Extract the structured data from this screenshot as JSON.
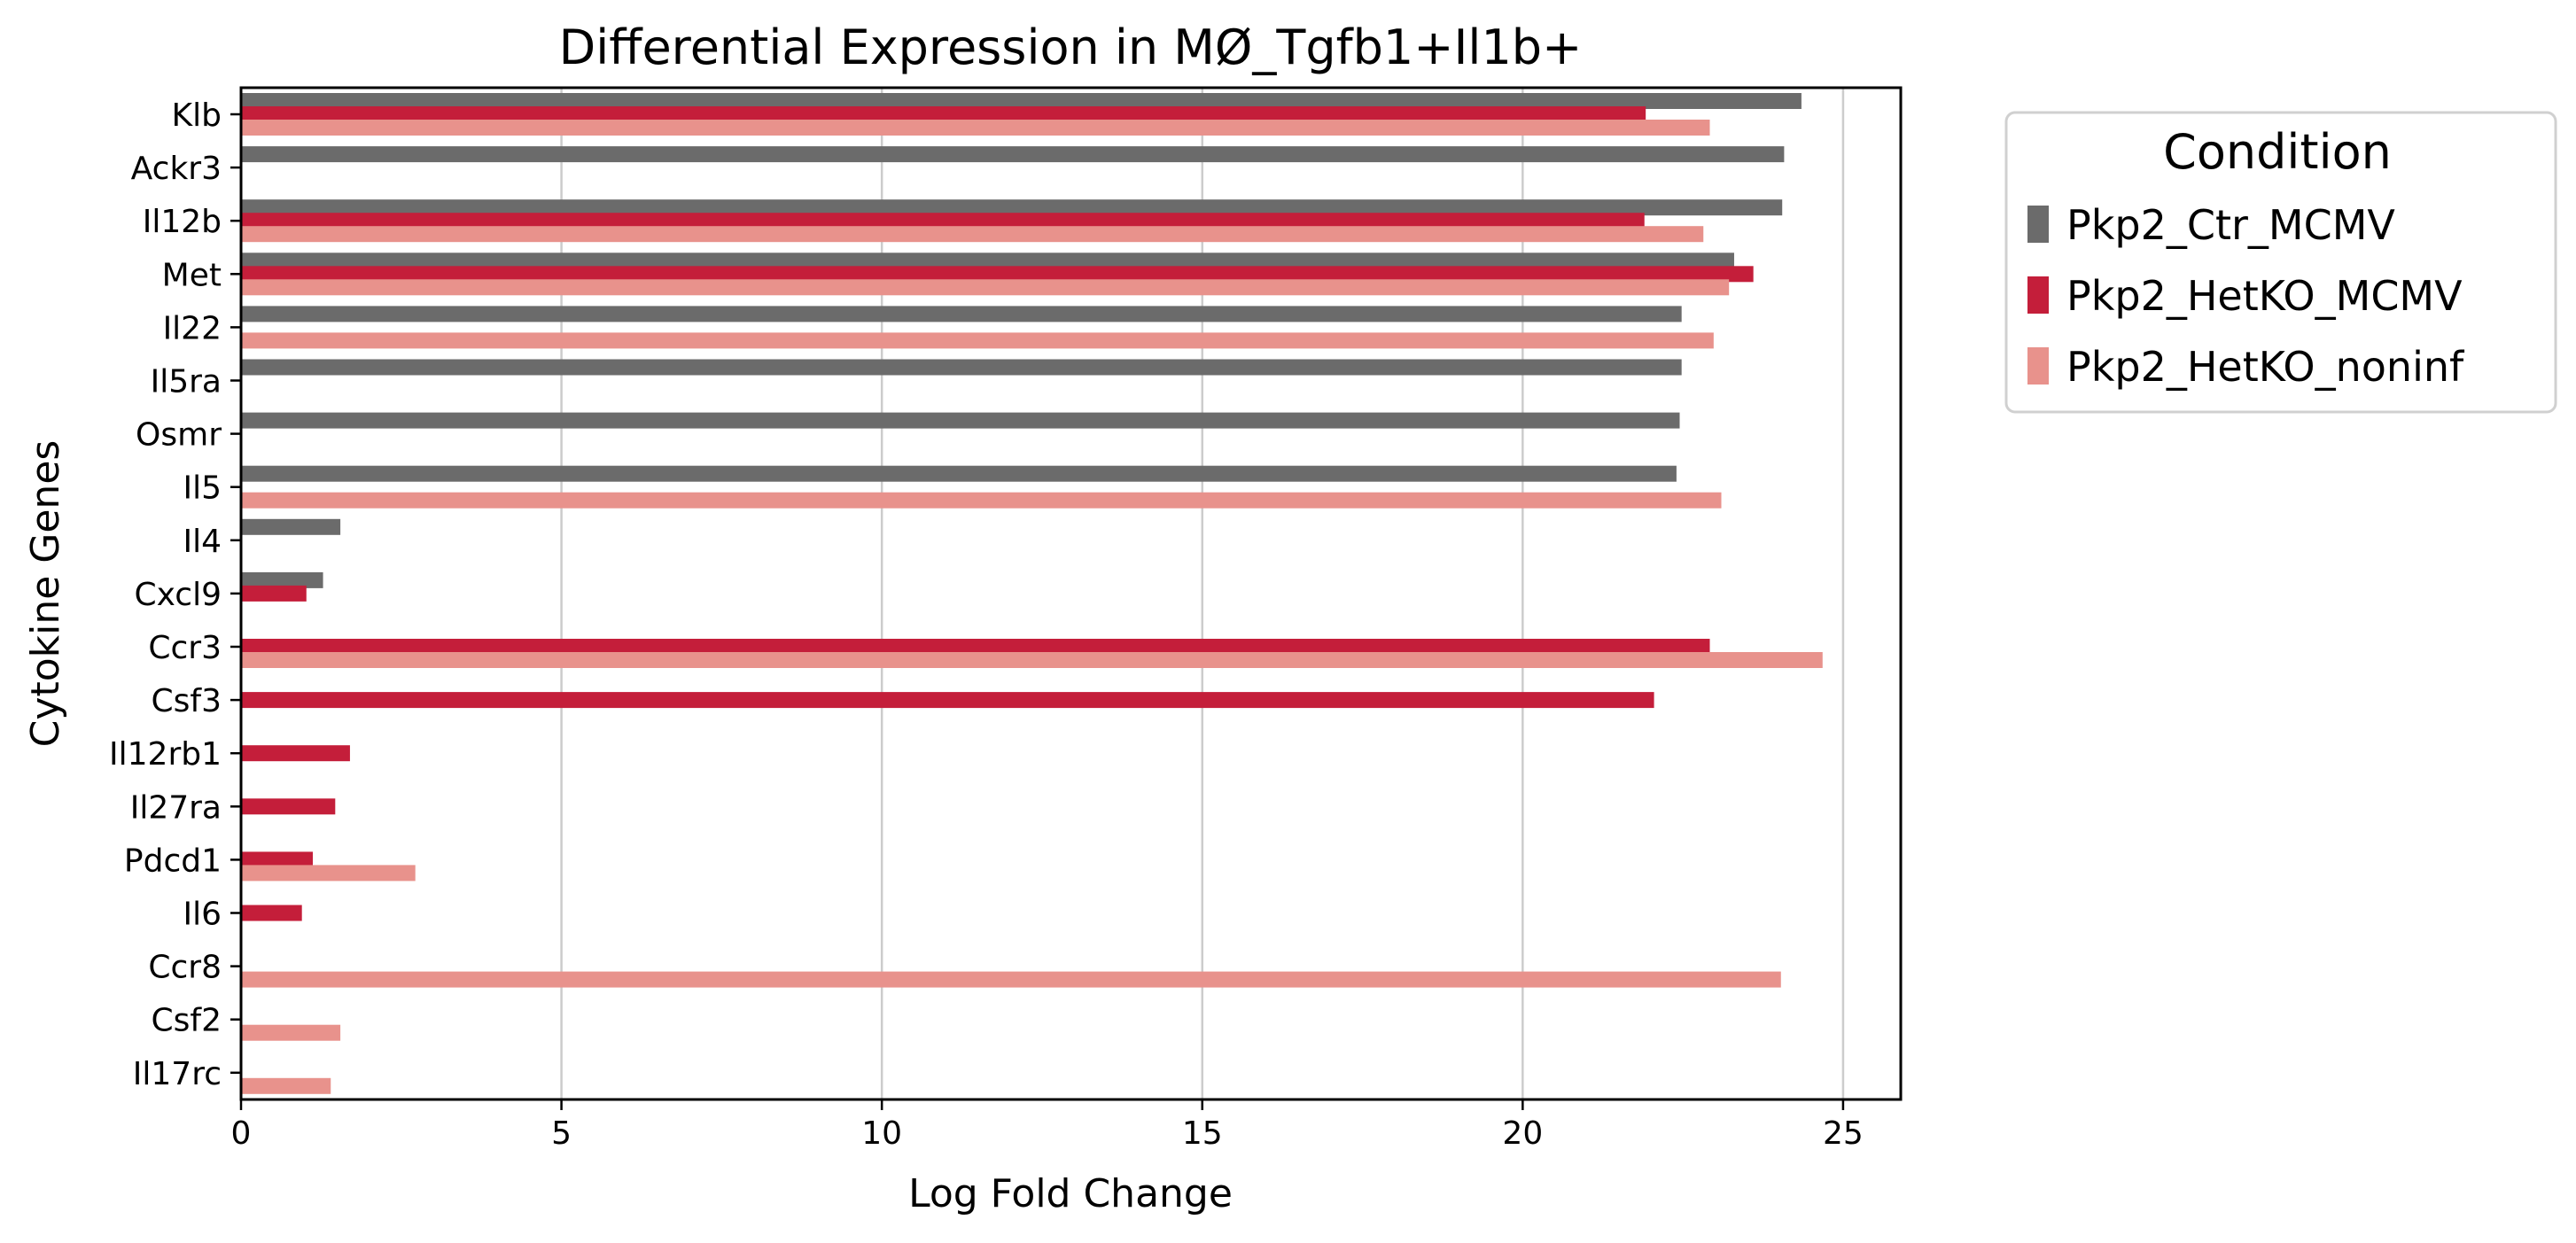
{
  "chart_data": {
    "type": "bar",
    "orientation": "horizontal",
    "title": "Differential Expression in MØ_Tgfb1+Il1b+",
    "xlabel": "Log Fold Change",
    "ylabel": "Cytokine Genes",
    "xlim": [
      0,
      25.9
    ],
    "xticks": [
      0,
      5,
      10,
      15,
      20,
      25
    ],
    "grid": "vertical",
    "legend": {
      "title": "Condition",
      "placement": "outside-top-right"
    },
    "categories": [
      "Klb",
      "Ackr3",
      "Il12b",
      "Met",
      "Il22",
      "Il5ra",
      "Osmr",
      "Il5",
      "Il4",
      "Cxcl9",
      "Ccr3",
      "Csf3",
      "Il12rb1",
      "Il27ra",
      "Pdcd1",
      "Il6",
      "Ccr8",
      "Csf2",
      "Il17rc"
    ],
    "series": [
      {
        "name": "Pkp2_Ctr_MCMV",
        "color": "#6b6b6b",
        "values": [
          24.35,
          24.08,
          24.05,
          23.3,
          22.48,
          22.48,
          22.45,
          22.4,
          1.55,
          1.28,
          null,
          null,
          null,
          null,
          null,
          null,
          null,
          null,
          null
        ]
      },
      {
        "name": "Pkp2_HetKO_MCMV",
        "color": "#c41e3a",
        "values": [
          21.92,
          null,
          21.9,
          23.6,
          null,
          null,
          null,
          null,
          null,
          1.02,
          22.92,
          22.05,
          1.7,
          1.47,
          1.12,
          0.95,
          null,
          null,
          null
        ]
      },
      {
        "name": "Pkp2_HetKO_noninf",
        "color": "#e8928c",
        "values": [
          22.92,
          null,
          22.82,
          23.22,
          22.98,
          null,
          null,
          23.1,
          null,
          null,
          24.68,
          null,
          null,
          null,
          2.72,
          null,
          24.03,
          1.55,
          1.4
        ]
      }
    ]
  }
}
